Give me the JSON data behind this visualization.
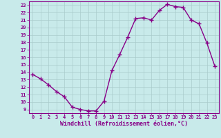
{
  "x": [
    0,
    1,
    2,
    3,
    4,
    5,
    6,
    7,
    8,
    9,
    10,
    11,
    12,
    13,
    14,
    15,
    16,
    17,
    18,
    19,
    20,
    21,
    22,
    23
  ],
  "y": [
    13.7,
    13.1,
    12.3,
    11.4,
    10.7,
    9.3,
    9.0,
    8.8,
    8.8,
    10.1,
    14.2,
    16.4,
    18.7,
    21.2,
    21.3,
    21.0,
    22.3,
    23.1,
    22.8,
    22.7,
    21.0,
    20.5,
    17.9,
    14.8
  ],
  "line_color": "#880088",
  "marker": "+",
  "markersize": 4,
  "linewidth": 1.0,
  "bg_color": "#c8eaea",
  "grid_color": "#aacccc",
  "xlabel": "Windchill (Refroidissement éolien,°C)",
  "xlabel_color": "#880088",
  "tick_color": "#880088",
  "label_color": "#880088",
  "ylim": [
    9,
    23
  ],
  "xlim": [
    -0.5,
    23.5
  ],
  "yticks": [
    9,
    10,
    11,
    12,
    13,
    14,
    15,
    16,
    17,
    18,
    19,
    20,
    21,
    22,
    23
  ],
  "xticks": [
    0,
    1,
    2,
    3,
    4,
    5,
    6,
    7,
    8,
    9,
    10,
    11,
    12,
    13,
    14,
    15,
    16,
    17,
    18,
    19,
    20,
    21,
    22,
    23
  ],
  "tick_fontsize": 5.0,
  "xlabel_fontsize": 6.0
}
